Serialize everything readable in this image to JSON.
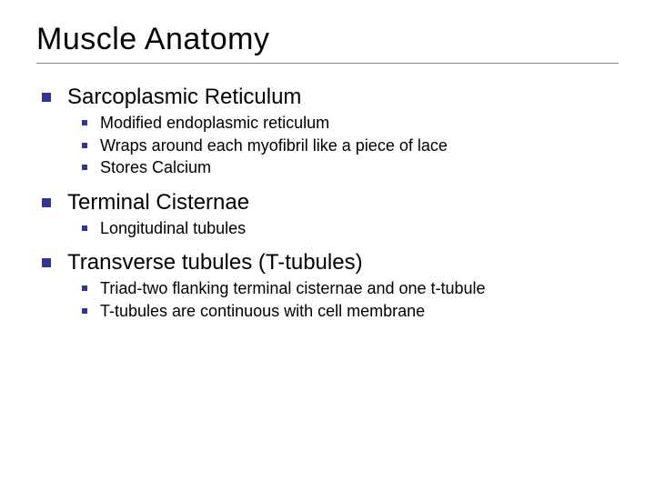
{
  "title": "Muscle Anatomy",
  "colors": {
    "bullet": "#333399",
    "title": "#000000",
    "text": "#000000",
    "underline": "#888888",
    "background": "#ffffff"
  },
  "typography": {
    "title_fontsize": 34,
    "lvl1_fontsize": 24,
    "lvl2_fontsize": 18,
    "font_family": "Arial"
  },
  "items": [
    {
      "label": "Sarcoplasmic Reticulum",
      "children": [
        {
          "label": "Modified endoplasmic reticulum"
        },
        {
          "label": "Wraps around each myofibril like a piece of lace"
        },
        {
          "label": "Stores Calcium"
        }
      ]
    },
    {
      "label": "Terminal Cisternae",
      "children": [
        {
          "label": "Longitudinal tubules"
        }
      ]
    },
    {
      "label": "Transverse tubules (T-tubules)",
      "children": [
        {
          "label": "Triad-two flanking terminal cisternae and one t-tubule"
        },
        {
          "label": "T-tubules are continuous with cell membrane"
        }
      ]
    }
  ]
}
